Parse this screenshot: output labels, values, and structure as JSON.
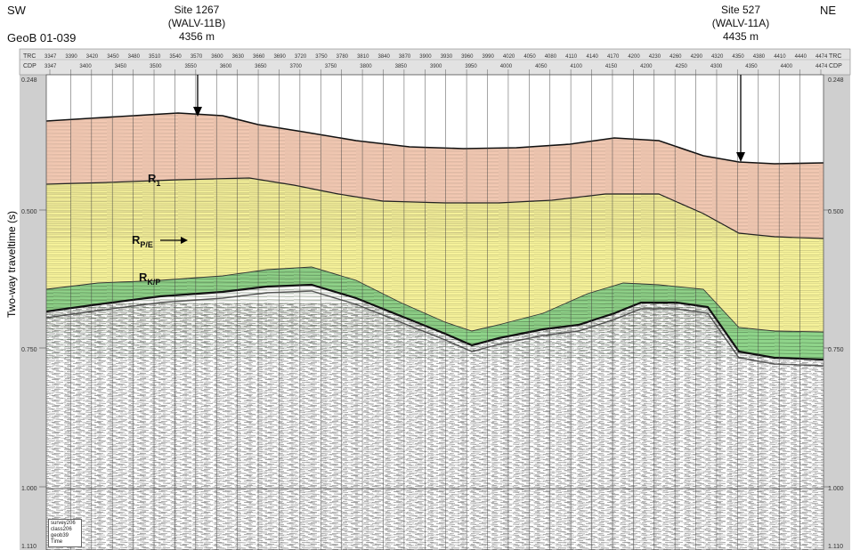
{
  "header": {
    "sw": "SW",
    "ne": "NE",
    "line_name": "GeoB 01-039"
  },
  "sites": [
    {
      "name": "Site 1267",
      "code": "(WALV-11B)",
      "depth": "4356 m"
    },
    {
      "name": "Site 527",
      "code": "(WALV-11A)",
      "depth": "4435 m"
    }
  ],
  "axis": {
    "ylabel": "Two-way traveltime (s)",
    "left_ticks": [
      "0.500",
      "0.750",
      "1.000"
    ],
    "right_ticks": [
      "0.500",
      "0.750",
      "1.000"
    ],
    "top_left_value": "0.248",
    "top_right_value": "0.248",
    "bottom_left_value": "1.110",
    "bottom_right_value": "1.110",
    "trc_label": "TRC",
    "cdp_label": "CDP",
    "trc_values": [
      "3347",
      "3390",
      "3420",
      "3450",
      "3480",
      "3510",
      "3540",
      "3570",
      "3600",
      "3630",
      "3660",
      "3690",
      "3720",
      "3750",
      "3780",
      "3810",
      "3840",
      "3870",
      "3900",
      "3930",
      "3960",
      "3990",
      "4020",
      "4050",
      "4080",
      "4110",
      "4140",
      "4170",
      "4200",
      "4230",
      "4260",
      "4290",
      "4320",
      "4350",
      "4380",
      "4410",
      "4440",
      "4474"
    ],
    "cdp_values": [
      "3347",
      "3400",
      "3450",
      "3500",
      "3550",
      "3600",
      "3650",
      "3700",
      "3750",
      "3800",
      "3850",
      "3900",
      "3950",
      "4000",
      "4050",
      "4100",
      "4150",
      "4200",
      "4250",
      "4300",
      "4350",
      "4400",
      "4474"
    ]
  },
  "reflectors": {
    "r1": {
      "main": "R",
      "sub": "1"
    },
    "rpe": {
      "main": "R",
      "sub": "P/E"
    },
    "rkp": {
      "main": "R",
      "sub": "K/P"
    }
  },
  "colors": {
    "unit1": "#f3c9b3",
    "unit2": "#f6f29a",
    "unit3": "#8fd48a",
    "frame": "#cfcfcf"
  },
  "legend_box": [
    "survey206",
    "class206",
    "geob39",
    "Time"
  ]
}
